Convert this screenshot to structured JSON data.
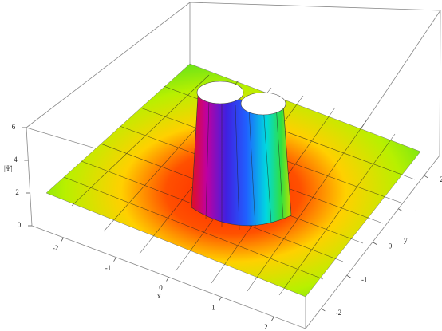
{
  "chart_data": {
    "type": "surface3d",
    "x_label": "x̄",
    "y_label": "ȳ",
    "z_label": "|Ψ̄|",
    "xlim": [
      -2.6,
      2.6
    ],
    "ylim": [
      -2.6,
      2.6
    ],
    "zlim": [
      0,
      6
    ],
    "xticks": [
      -2,
      -1,
      0,
      1,
      2
    ],
    "yticks": [
      -2,
      -1,
      0,
      1,
      2
    ],
    "zticks": [
      0,
      2,
      4,
      6
    ]
  }
}
